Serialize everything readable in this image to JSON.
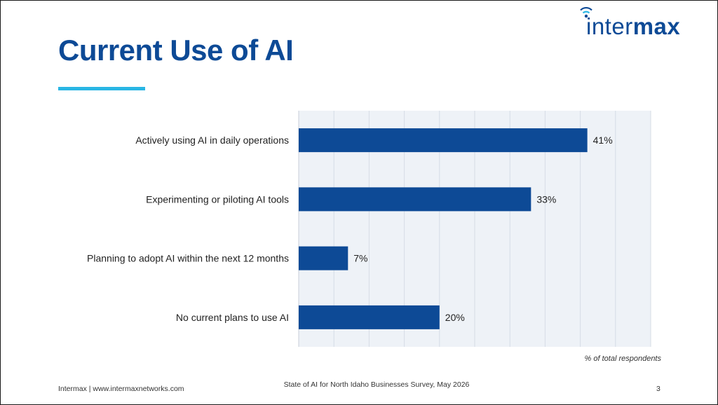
{
  "slide": {
    "title": "Current Use of AI",
    "logo": {
      "text_light": "inter",
      "text_bold": "max"
    },
    "footer": {
      "left": "Intermax  |  www.intermaxnetworks.com",
      "center": "State of AI for North Idaho Businesses Survey, May 2026",
      "page_number": "3"
    }
  },
  "colors": {
    "title": "#0d4a96",
    "accent": "#29b6e4",
    "bar": "#0d4a96",
    "plot_background": "#eef2f7",
    "grid": "#d5dce6"
  },
  "chart_data": {
    "type": "bar",
    "orientation": "horizontal",
    "categories": [
      "Actively using AI in daily operations",
      "Experimenting or piloting AI tools",
      "Planning to adopt AI within the next 12 months",
      "No current plans to use AI"
    ],
    "values": [
      41,
      33,
      7,
      20
    ],
    "data_labels": [
      "41%",
      "33%",
      "7%",
      "20%"
    ],
    "xlabel": "% of total respondents",
    "xlim": [
      0,
      50
    ],
    "grid": true,
    "legend": "none"
  }
}
